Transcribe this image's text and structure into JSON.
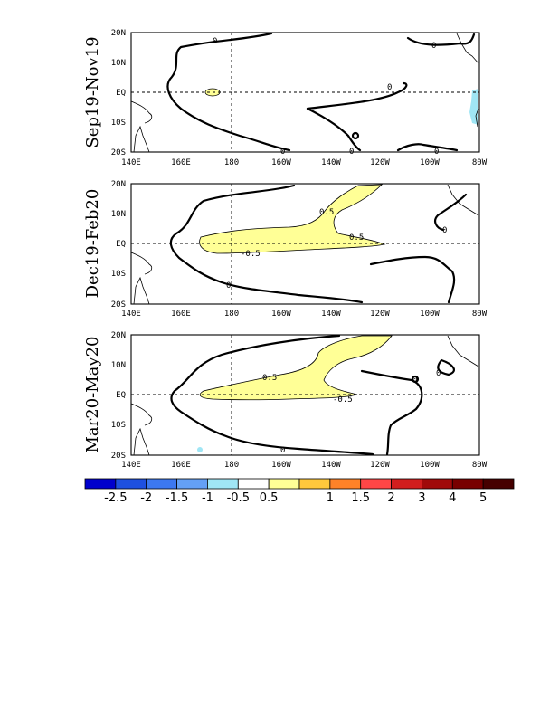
{
  "axes": {
    "x_ticks": [
      "140E",
      "160E",
      "180",
      "160W",
      "140W",
      "120W",
      "100W",
      "80W"
    ],
    "y_ticks": [
      "20N",
      "10N",
      "EQ",
      "10S",
      "20S"
    ]
  },
  "panels": [
    {
      "title": "Sep19-Nov19",
      "contour_labels": [
        "0",
        "0",
        "0",
        "0",
        "0",
        "0"
      ]
    },
    {
      "title": "Dec19-Feb20",
      "contour_labels": [
        "0.5",
        "0.5",
        "-0.5",
        "0",
        "0"
      ]
    },
    {
      "title": "Mar20-May20",
      "contour_labels": [
        "0.5",
        "-0.5",
        "0",
        "0",
        "0"
      ]
    }
  ],
  "colorbar": {
    "colors": [
      "#0000cd",
      "#1e50e0",
      "#3c78f0",
      "#64a0f5",
      "#a0e6f5",
      "#ffffff",
      "#ffff96",
      "#ffc83c",
      "#ff8228",
      "#ff4646",
      "#d21e1e",
      "#a00a0a",
      "#780000",
      "#460000"
    ],
    "labels": [
      "-2.5",
      "-2",
      "-1.5",
      "-1",
      "-0.5",
      "0.5",
      "1",
      "1.5",
      "2",
      "3",
      "4",
      "5"
    ]
  },
  "fill_colors": {
    "positive_anomaly": "#ffff96",
    "negative_anomaly": "#a0e6f5"
  }
}
